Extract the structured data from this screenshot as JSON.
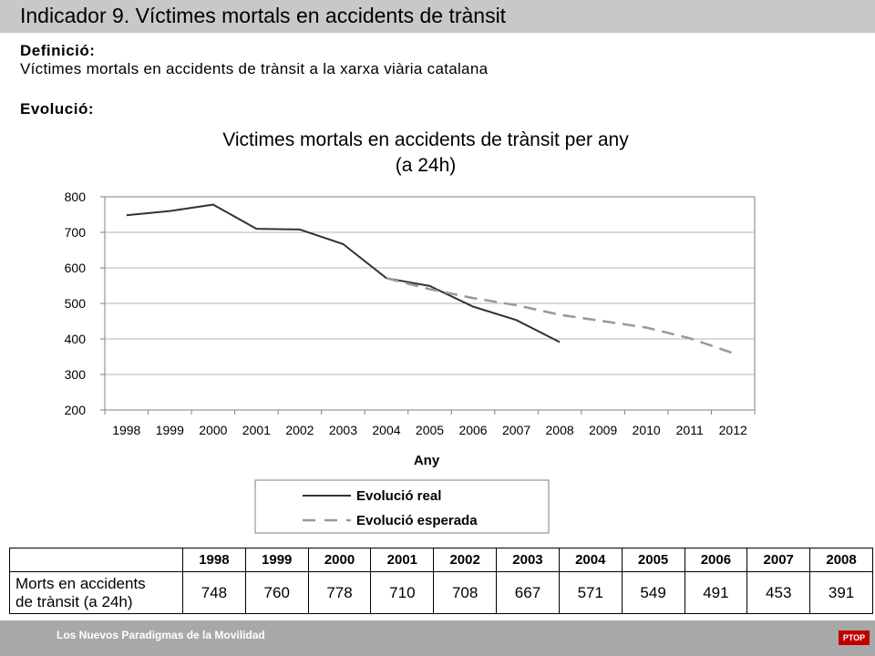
{
  "header": {
    "title": "Indicador 9. Víctimes mortals en accidents de trànsit"
  },
  "definition": {
    "label": "Definició:",
    "text": "Víctimes mortals en accidents de trànsit a la xarxa viària catalana"
  },
  "evolution": {
    "label": "Evolució:"
  },
  "chart_data": {
    "type": "line",
    "title": "Victimes mortals en accidents de trànsit per any",
    "subtitle": "(a 24h)",
    "xlabel": "Any",
    "ylabel": "",
    "categories": [
      "1998",
      "1999",
      "2000",
      "2001",
      "2002",
      "2003",
      "2004",
      "2005",
      "2006",
      "2007",
      "2008",
      "2009",
      "2010",
      "2011",
      "2012"
    ],
    "yticks": [
      200,
      300,
      400,
      500,
      600,
      700,
      800
    ],
    "ylim": [
      200,
      800
    ],
    "grid": true,
    "legend_position": "bottom",
    "series": [
      {
        "name": "Evolució real",
        "style": "solid",
        "color": "#333333",
        "x": [
          "1998",
          "1999",
          "2000",
          "2001",
          "2002",
          "2003",
          "2004",
          "2005",
          "2006",
          "2007",
          "2008"
        ],
        "values": [
          748,
          760,
          778,
          710,
          708,
          667,
          571,
          549,
          491,
          453,
          391
        ]
      },
      {
        "name": "Evolució esperada",
        "style": "dashed",
        "color": "#999999",
        "x": [
          "2004",
          "2005",
          "2006",
          "2007",
          "2008",
          "2009",
          "2010",
          "2011",
          "2012"
        ],
        "values": [
          571,
          540,
          515,
          495,
          468,
          450,
          432,
          402,
          360
        ]
      }
    ]
  },
  "table": {
    "years": [
      "1998",
      "1999",
      "2000",
      "2001",
      "2002",
      "2003",
      "2004",
      "2005",
      "2006",
      "2007",
      "2008"
    ],
    "row_label_line1": "Morts en accidents",
    "row_label_line2": "de trànsit (a 24h)",
    "values": [
      "748",
      "760",
      "778",
      "710",
      "708",
      "667",
      "571",
      "549",
      "491",
      "453",
      "391"
    ]
  },
  "footer": {
    "text": "Los Nuevos Paradigmas de la Movilidad",
    "logo": "PTOP"
  }
}
